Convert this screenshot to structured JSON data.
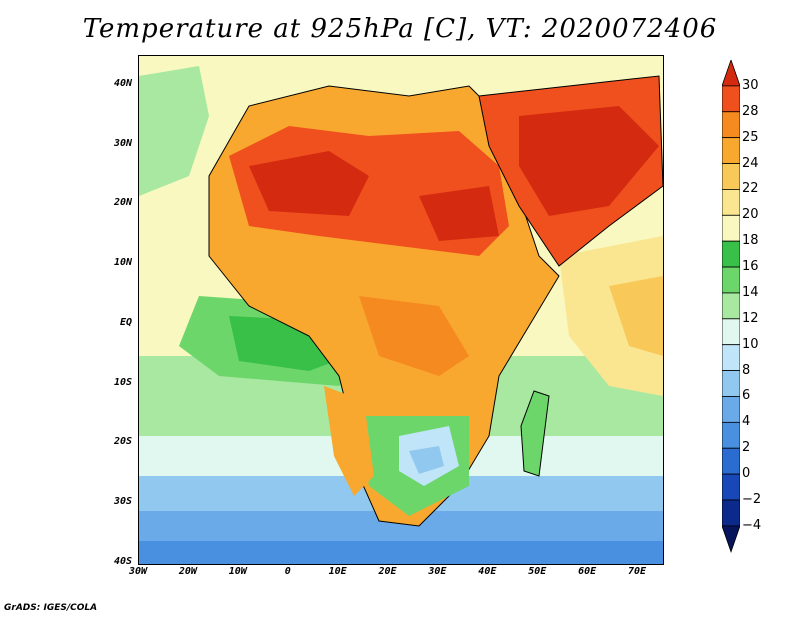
{
  "title": "Temperature at 925hPa [C], VT: 2020072406",
  "credit": "GrADS: IGES/COLA",
  "map": {
    "type": "heatmap",
    "lon_range": [
      -30,
      75
    ],
    "lat_range": [
      -40,
      45
    ],
    "lat_ticks": [
      {
        "lat": 40,
        "label": "40N"
      },
      {
        "lat": 30,
        "label": "30N"
      },
      {
        "lat": 20,
        "label": "20N"
      },
      {
        "lat": 10,
        "label": "10N"
      },
      {
        "lat": 0,
        "label": "EQ"
      },
      {
        "lat": -10,
        "label": "10S"
      },
      {
        "lat": -20,
        "label": "20S"
      },
      {
        "lat": -30,
        "label": "30S"
      },
      {
        "lat": -40,
        "label": "40S"
      }
    ],
    "lon_ticks": [
      {
        "lon": -30,
        "label": "30W"
      },
      {
        "lon": -20,
        "label": "20W"
      },
      {
        "lon": -10,
        "label": "10W"
      },
      {
        "lon": 0,
        "label": "0"
      },
      {
        "lon": 10,
        "label": "10E"
      },
      {
        "lon": 20,
        "label": "20E"
      },
      {
        "lon": 30,
        "label": "30E"
      },
      {
        "lon": 40,
        "label": "40E"
      },
      {
        "lon": 50,
        "label": "50E"
      },
      {
        "lon": 60,
        "label": "60E"
      },
      {
        "lon": 70,
        "label": "70E"
      }
    ]
  },
  "colorbar": {
    "levels": [
      "30",
      "28",
      "25",
      "24",
      "22",
      "20",
      "18",
      "16",
      "14",
      "12",
      "10",
      "8",
      "6",
      "4",
      "2",
      "0",
      "−2",
      "−4"
    ],
    "colors": [
      "#d42a10",
      "#f0501e",
      "#f58a20",
      "#f8a82e",
      "#f8c858",
      "#fae690",
      "#f8f8c0",
      "#38c048",
      "#6cd66a",
      "#a8e8a0",
      "#e0f8f0",
      "#c0e4f8",
      "#90c8f0",
      "#6aaae8",
      "#4a90e0",
      "#2a6cd0",
      "#1848b8",
      "#0c2a8c",
      "#06145c"
    ]
  }
}
